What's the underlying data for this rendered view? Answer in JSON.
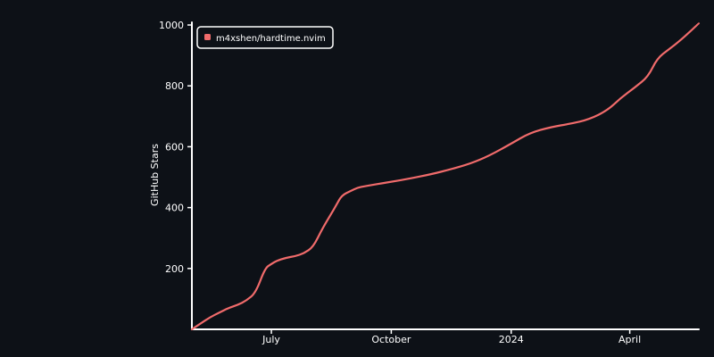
{
  "chart_data": {
    "type": "line",
    "ylabel": "GitHub Stars",
    "xlabel": "",
    "ylim": [
      0,
      1000
    ],
    "yticks": [
      200,
      400,
      600,
      800,
      1000
    ],
    "xtick_labels": [
      {
        "label": "July",
        "date": "2023-07-01"
      },
      {
        "label": "October",
        "date": "2023-10-01"
      },
      {
        "label": "2024",
        "date": "2024-01-01"
      },
      {
        "label": "April",
        "date": "2024-04-01"
      }
    ],
    "xlim": [
      "2023-05-01",
      "2024-05-24"
    ],
    "legend_position": "top-left",
    "series": [
      {
        "name": "m4xshen/hardtime.nvim",
        "color": "#f06b6b",
        "x": [
          "2023-05-01",
          "2023-05-08",
          "2023-05-15",
          "2023-05-22",
          "2023-05-29",
          "2023-06-05",
          "2023-06-12",
          "2023-06-19",
          "2023-06-26",
          "2023-07-01",
          "2023-07-05",
          "2023-07-12",
          "2023-07-19",
          "2023-07-26",
          "2023-08-02",
          "2023-08-09",
          "2023-08-16",
          "2023-08-20",
          "2023-08-24",
          "2023-08-31",
          "2023-09-05",
          "2023-09-10",
          "2023-09-17",
          "2023-09-24",
          "2023-10-01",
          "2023-10-15",
          "2023-11-01",
          "2023-11-15",
          "2023-12-01",
          "2023-12-15",
          "2024-01-01",
          "2024-01-15",
          "2024-02-01",
          "2024-02-15",
          "2024-03-01",
          "2024-03-15",
          "2024-03-25",
          "2024-04-05",
          "2024-04-15",
          "2024-04-22",
          "2024-05-01",
          "2024-05-10",
          "2024-05-24"
        ],
        "values": [
          0,
          20,
          40,
          55,
          70,
          80,
          95,
          120,
          200,
          215,
          225,
          235,
          240,
          250,
          270,
          330,
          380,
          410,
          440,
          455,
          465,
          470,
          475,
          480,
          485,
          495,
          510,
          525,
          545,
          570,
          610,
          645,
          665,
          675,
          690,
          720,
          760,
          795,
          830,
          890,
          920,
          950,
          1005
        ]
      }
    ]
  }
}
